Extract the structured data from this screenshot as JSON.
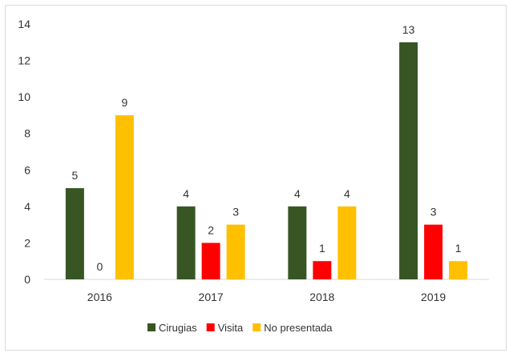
{
  "chart_data": {
    "type": "bar",
    "categories": [
      "2016",
      "2017",
      "2018",
      "2019"
    ],
    "series": [
      {
        "name": "Cirugias",
        "values": [
          5,
          4,
          4,
          13
        ],
        "color": "#375623"
      },
      {
        "name": "Visita",
        "values": [
          0,
          2,
          1,
          3
        ],
        "color": "#ff0000"
      },
      {
        "name": "No presentada",
        "values": [
          9,
          3,
          4,
          1
        ],
        "color": "#ffc000"
      }
    ],
    "ylim": [
      0,
      14
    ],
    "yticks": [
      0,
      2,
      4,
      6,
      8,
      10,
      12,
      14
    ],
    "grid": false,
    "legend": "bottom",
    "data_labels": true
  }
}
